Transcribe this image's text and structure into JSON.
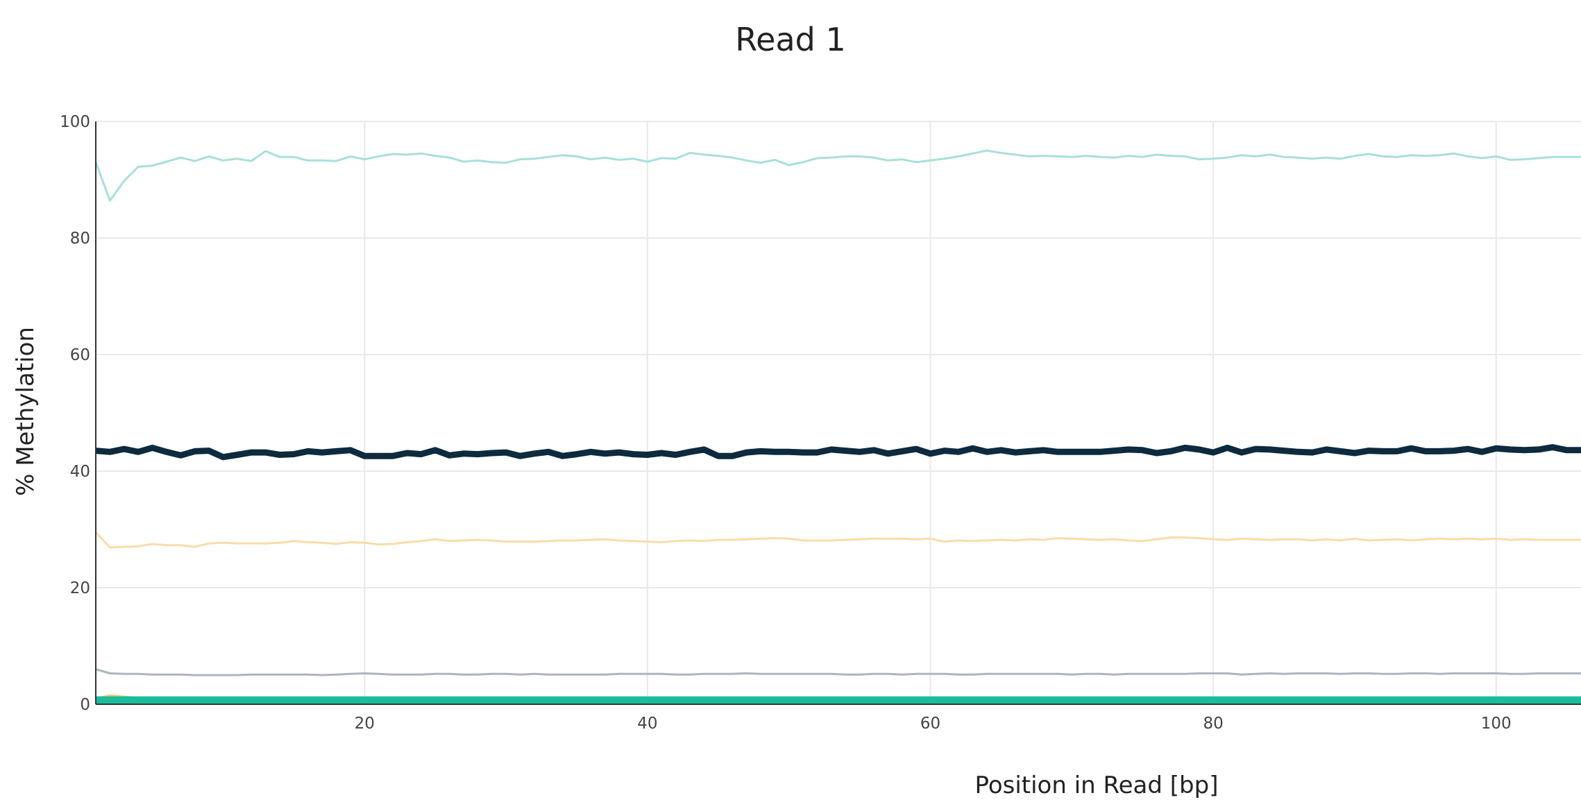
{
  "chart_data": {
    "type": "line",
    "title": "Read 1",
    "xlabel": "Position in Read [bp]",
    "ylabel": "% Methylation",
    "xlim": [
      1,
      106
    ],
    "ylim": [
      0,
      100
    ],
    "xticks": [
      20,
      40,
      60,
      80,
      100
    ],
    "yticks": [
      0,
      20,
      40,
      60,
      80,
      100
    ],
    "grid": true,
    "x": [
      1,
      2,
      3,
      4,
      5,
      6,
      7,
      8,
      9,
      10,
      11,
      12,
      13,
      14,
      15,
      16,
      17,
      18,
      19,
      20,
      21,
      22,
      23,
      24,
      25,
      26,
      27,
      28,
      29,
      30,
      31,
      32,
      33,
      34,
      35,
      36,
      37,
      38,
      39,
      40,
      41,
      42,
      43,
      44,
      45,
      46,
      47,
      48,
      49,
      50,
      51,
      52,
      53,
      54,
      55,
      56,
      57,
      58,
      59,
      60,
      61,
      62,
      63,
      64,
      65,
      66,
      67,
      68,
      69,
      70,
      71,
      72,
      73,
      74,
      75,
      76,
      77,
      78,
      79,
      80,
      81,
      82,
      83,
      84,
      85,
      86,
      87,
      88,
      89,
      90,
      91,
      92,
      93,
      94,
      95,
      96,
      97,
      98,
      99,
      100,
      101,
      102,
      103,
      104,
      105,
      106
    ],
    "series": [
      {
        "color": "#a8e0d8",
        "width": 3,
        "values": [
          93.0,
          86.4,
          89.8,
          92.2,
          92.4,
          93.1,
          93.8,
          93.2,
          94.0,
          93.3,
          93.6,
          93.2,
          94.9,
          93.9,
          93.9,
          93.3,
          93.3,
          93.2,
          94.0,
          93.5,
          94.0,
          94.4,
          94.3,
          94.5,
          94.1,
          93.8,
          93.1,
          93.3,
          93.0,
          92.9,
          93.5,
          93.6,
          93.9,
          94.2,
          94.0,
          93.5,
          93.8,
          93.4,
          93.6,
          93.1,
          93.7,
          93.6,
          94.6,
          94.3,
          94.1,
          93.8,
          93.3,
          92.9,
          93.4,
          92.5,
          93.0,
          93.7,
          93.8,
          94.0,
          94.0,
          93.8,
          93.3,
          93.5,
          93.0,
          93.3,
          93.6,
          94.0,
          94.5,
          95.0,
          94.6,
          94.3,
          94.0,
          94.1,
          94.0,
          93.9,
          94.1,
          93.9,
          93.8,
          94.1,
          93.9,
          94.3,
          94.1,
          94.0,
          93.5,
          93.6,
          93.8,
          94.2,
          94.0,
          94.3,
          93.9,
          93.8,
          93.6,
          93.8,
          93.6,
          94.1,
          94.4,
          94.0,
          93.9,
          94.2,
          94.1,
          94.2,
          94.5,
          94.0,
          93.7,
          94.0,
          93.4,
          93.5,
          93.7,
          93.9,
          93.9,
          93.9
        ]
      },
      {
        "color": "#f9dcac",
        "width": 3,
        "values": [
          29.5,
          26.9,
          27.0,
          27.1,
          27.5,
          27.3,
          27.3,
          27.0,
          27.6,
          27.7,
          27.6,
          27.6,
          27.6,
          27.7,
          28.0,
          27.8,
          27.7,
          27.5,
          27.8,
          27.7,
          27.4,
          27.5,
          27.8,
          28.0,
          28.3,
          28.0,
          28.1,
          28.2,
          28.1,
          27.9,
          27.9,
          27.9,
          28.0,
          28.1,
          28.1,
          28.2,
          28.3,
          28.1,
          28.0,
          27.9,
          27.8,
          28.0,
          28.1,
          28.0,
          28.2,
          28.2,
          28.3,
          28.4,
          28.5,
          28.4,
          28.1,
          28.1,
          28.1,
          28.2,
          28.3,
          28.4,
          28.4,
          28.4,
          28.3,
          28.4,
          27.9,
          28.1,
          28.0,
          28.1,
          28.2,
          28.1,
          28.3,
          28.2,
          28.5,
          28.4,
          28.3,
          28.2,
          28.3,
          28.1,
          28.0,
          28.3,
          28.6,
          28.6,
          28.5,
          28.3,
          28.2,
          28.4,
          28.3,
          28.2,
          28.3,
          28.3,
          28.1,
          28.3,
          28.1,
          28.4,
          28.1,
          28.2,
          28.3,
          28.1,
          28.3,
          28.4,
          28.3,
          28.4,
          28.3,
          28.4,
          28.2,
          28.3,
          28.2,
          28.2,
          28.2,
          28.2
        ]
      },
      {
        "color": "#adb5bd",
        "width": 3,
        "values": [
          6.0,
          5.3,
          5.2,
          5.2,
          5.1,
          5.1,
          5.1,
          5.0,
          5.0,
          5.0,
          5.0,
          5.1,
          5.1,
          5.1,
          5.1,
          5.1,
          5.0,
          5.1,
          5.2,
          5.3,
          5.2,
          5.1,
          5.1,
          5.1,
          5.2,
          5.2,
          5.1,
          5.1,
          5.2,
          5.2,
          5.1,
          5.2,
          5.1,
          5.1,
          5.1,
          5.1,
          5.1,
          5.2,
          5.2,
          5.2,
          5.2,
          5.1,
          5.1,
          5.2,
          5.2,
          5.2,
          5.3,
          5.2,
          5.2,
          5.2,
          5.2,
          5.2,
          5.2,
          5.1,
          5.1,
          5.2,
          5.2,
          5.1,
          5.2,
          5.2,
          5.2,
          5.1,
          5.1,
          5.2,
          5.2,
          5.2,
          5.2,
          5.2,
          5.2,
          5.1,
          5.2,
          5.2,
          5.1,
          5.2,
          5.2,
          5.2,
          5.2,
          5.2,
          5.3,
          5.3,
          5.3,
          5.1,
          5.2,
          5.3,
          5.2,
          5.3,
          5.3,
          5.3,
          5.2,
          5.3,
          5.3,
          5.2,
          5.2,
          5.3,
          5.3,
          5.2,
          5.3,
          5.3,
          5.3,
          5.3,
          5.2,
          5.2,
          5.3,
          5.3,
          5.3,
          5.3
        ]
      },
      {
        "color": "#f7c873",
        "width": 3,
        "values": [
          1.0,
          1.5,
          1.3,
          1.1,
          1.1,
          1.1,
          1.1,
          1.1,
          1.1,
          1.1,
          1.1,
          1.1,
          1.1,
          1.1,
          1.0,
          1.0,
          1.0,
          1.0,
          1.0,
          1.0,
          1.0,
          1.0,
          1.0,
          1.0,
          1.0,
          1.0,
          1.0,
          1.0,
          1.0,
          1.0,
          1.0,
          1.0,
          1.0,
          1.0,
          1.0,
          1.0,
          1.0,
          1.0,
          1.0,
          1.0,
          1.0,
          1.0,
          1.0,
          1.0,
          1.0,
          1.0,
          1.0,
          1.0,
          1.0,
          1.0,
          1.0,
          1.0,
          1.0,
          1.0,
          1.0,
          1.0,
          1.0,
          1.0,
          1.0,
          1.0,
          1.0,
          1.0,
          1.0,
          1.0,
          1.0,
          1.0,
          1.0,
          1.0,
          1.0,
          1.0,
          1.0,
          1.0,
          1.0,
          1.0,
          1.0,
          1.0,
          1.0,
          1.0,
          1.0,
          1.0,
          1.0,
          1.0,
          1.0,
          1.0,
          1.0,
          1.0,
          1.0,
          1.0,
          1.0,
          1.0,
          1.0,
          1.0,
          1.0,
          1.0,
          1.0,
          1.0,
          1.0,
          1.0,
          1.0,
          1.0,
          1.0,
          1.0,
          1.0,
          1.0,
          1.0,
          1.0
        ]
      },
      {
        "color": "#1abc9c",
        "width": 11,
        "values": [
          0.7,
          0.7,
          0.7,
          0.7,
          0.7,
          0.7,
          0.7,
          0.7,
          0.7,
          0.7,
          0.7,
          0.7,
          0.7,
          0.7,
          0.7,
          0.7,
          0.7,
          0.7,
          0.7,
          0.7,
          0.7,
          0.7,
          0.7,
          0.7,
          0.7,
          0.7,
          0.7,
          0.7,
          0.7,
          0.7,
          0.7,
          0.7,
          0.7,
          0.7,
          0.7,
          0.7,
          0.7,
          0.7,
          0.7,
          0.7,
          0.7,
          0.7,
          0.7,
          0.7,
          0.7,
          0.7,
          0.7,
          0.7,
          0.7,
          0.7,
          0.7,
          0.7,
          0.7,
          0.7,
          0.7,
          0.7,
          0.7,
          0.7,
          0.7,
          0.7,
          0.7,
          0.7,
          0.7,
          0.7,
          0.7,
          0.7,
          0.7,
          0.7,
          0.7,
          0.7,
          0.7,
          0.7,
          0.7,
          0.7,
          0.7,
          0.7,
          0.7,
          0.7,
          0.7,
          0.7,
          0.7,
          0.7,
          0.7,
          0.7,
          0.7,
          0.7,
          0.7,
          0.7,
          0.7,
          0.7,
          0.7,
          0.7,
          0.7,
          0.7,
          0.7,
          0.7,
          0.7,
          0.7,
          0.7,
          0.7,
          0.7,
          0.7,
          0.7,
          0.7,
          0.7,
          0.7
        ]
      },
      {
        "color": "#0d2a3f",
        "width": 9,
        "values": [
          43.5,
          43.3,
          43.8,
          43.3,
          44.0,
          43.3,
          42.7,
          43.4,
          43.5,
          42.4,
          42.8,
          43.2,
          43.2,
          42.8,
          42.9,
          43.4,
          43.2,
          43.4,
          43.6,
          42.6,
          42.6,
          42.6,
          43.1,
          42.9,
          43.6,
          42.7,
          43.0,
          42.9,
          43.1,
          43.2,
          42.6,
          43.0,
          43.3,
          42.6,
          42.9,
          43.3,
          43.0,
          43.2,
          42.9,
          42.8,
          43.1,
          42.8,
          43.3,
          43.7,
          42.6,
          42.6,
          43.2,
          43.4,
          43.3,
          43.3,
          43.2,
          43.2,
          43.7,
          43.5,
          43.3,
          43.6,
          43.0,
          43.4,
          43.8,
          43.0,
          43.5,
          43.3,
          43.9,
          43.3,
          43.6,
          43.2,
          43.4,
          43.6,
          43.3,
          43.3,
          43.3,
          43.3,
          43.5,
          43.7,
          43.6,
          43.1,
          43.4,
          44.0,
          43.7,
          43.2,
          44.0,
          43.2,
          43.8,
          43.7,
          43.5,
          43.3,
          43.2,
          43.7,
          43.4,
          43.1,
          43.5,
          43.4,
          43.4,
          43.9,
          43.4,
          43.4,
          43.5,
          43.8,
          43.3,
          43.9,
          43.7,
          43.6,
          43.7,
          44.1,
          43.6,
          43.6
        ]
      }
    ]
  }
}
